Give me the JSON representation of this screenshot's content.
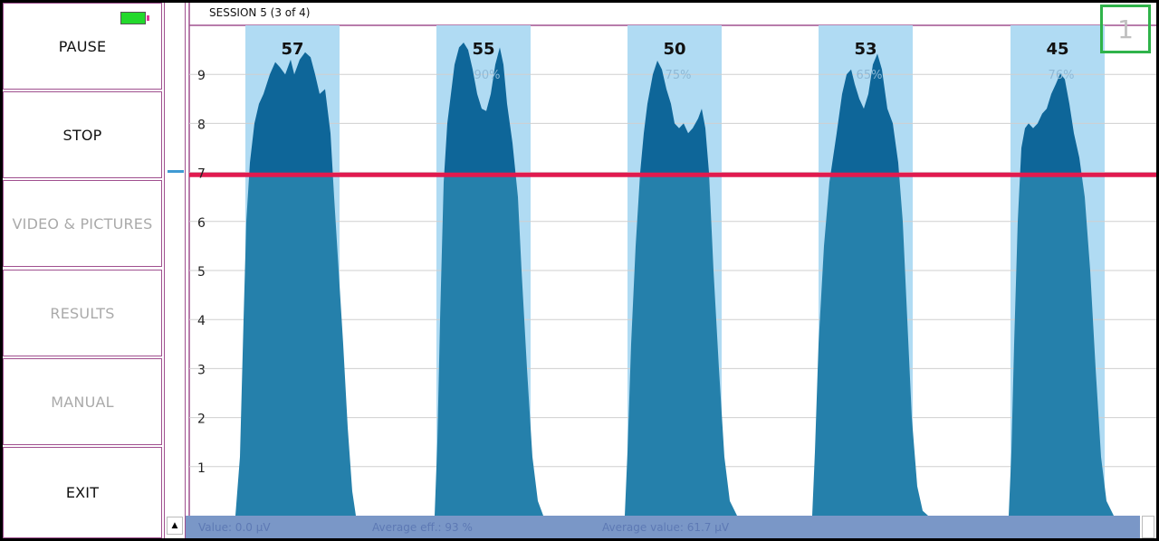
{
  "menu": {
    "items": [
      {
        "label": "PAUSE",
        "enabled": true
      },
      {
        "label": "STOP",
        "enabled": true
      },
      {
        "label": "VIDEO & PICTURES",
        "enabled": false
      },
      {
        "label": "RESULTS",
        "enabled": false
      },
      {
        "label": "MANUAL",
        "enabled": false
      },
      {
        "label": "EXIT",
        "enabled": true
      }
    ]
  },
  "battery": {
    "icon": "battery-icon",
    "color": "#23d92c"
  },
  "session": {
    "title": "SESSION 5 (3 of 4)"
  },
  "counter": {
    "value": "1"
  },
  "status": {
    "value": "Value: 0.0 µV",
    "average_eff": "Average eff.: 93 %",
    "average_value": "Average value: 61.7 µV"
  },
  "chart_data": {
    "type": "area",
    "ylim": [
      0,
      10
    ],
    "y_ticks": [
      "1",
      "2",
      "3",
      "4",
      "5",
      "6",
      "7",
      "8",
      "9"
    ],
    "threshold": 6.95,
    "threshold_color": "#e11a4f",
    "fill_below_color": "#2580ab",
    "fill_above_color": "#0e6699",
    "band_color": "#b0dbf3",
    "contractions": [
      {
        "label": "57",
        "percent": "",
        "peak": 9.45
      },
      {
        "label": "55",
        "percent": "90%",
        "peak": 9.65
      },
      {
        "label": "50",
        "percent": "75%",
        "peak": 9.28
      },
      {
        "label": "53",
        "percent": "65%",
        "peak": 9.42
      },
      {
        "label": "45",
        "percent": "76%",
        "peak": 9.02
      }
    ]
  }
}
